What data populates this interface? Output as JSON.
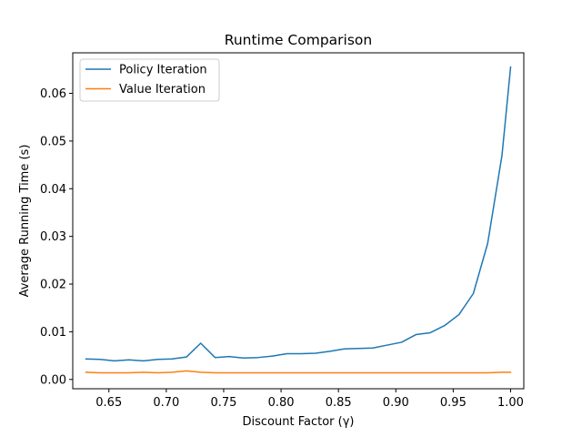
{
  "chart_data": {
    "type": "line",
    "title": "Runtime Comparison",
    "xlabel": "Discount Factor (γ)",
    "ylabel": "Average Running Time (s)",
    "xlim": [
      0.6185,
      1.0115
    ],
    "ylim": [
      -0.00195,
      0.0685
    ],
    "xticks": [
      "0.65",
      "0.70",
      "0.75",
      "0.80",
      "0.85",
      "0.90",
      "0.95",
      "1.00"
    ],
    "xtick_values": [
      0.65,
      0.7,
      0.75,
      0.8,
      0.85,
      0.9,
      0.95,
      1.0
    ],
    "yticks": [
      "0.00",
      "0.01",
      "0.02",
      "0.03",
      "0.04",
      "0.05",
      "0.06"
    ],
    "ytick_values": [
      0.0,
      0.01,
      0.02,
      0.03,
      0.04,
      0.05,
      0.06
    ],
    "grid": false,
    "legend_position": "top-left",
    "x": [
      0.63,
      0.6425,
      0.655,
      0.6675,
      0.68,
      0.6925,
      0.705,
      0.7175,
      0.73,
      0.7425,
      0.755,
      0.7675,
      0.78,
      0.7925,
      0.805,
      0.8175,
      0.83,
      0.8425,
      0.855,
      0.8675,
      0.88,
      0.8925,
      0.905,
      0.9175,
      0.93,
      0.9425,
      0.955,
      0.9675,
      0.98,
      0.9925,
      1.0
    ],
    "series": [
      {
        "name": "Policy Iteration",
        "color": "#1f77b4",
        "values": [
          0.0043,
          0.0042,
          0.0039,
          0.0041,
          0.0039,
          0.0042,
          0.0043,
          0.0047,
          0.0076,
          0.0046,
          0.0048,
          0.0045,
          0.0046,
          0.0049,
          0.0054,
          0.0054,
          0.0055,
          0.0059,
          0.0064,
          0.0065,
          0.0066,
          0.0072,
          0.0078,
          0.0094,
          0.0098,
          0.0113,
          0.0136,
          0.018,
          0.0285,
          0.047,
          0.0655
        ]
      },
      {
        "name": "Value Iteration",
        "color": "#ff7f0e",
        "values": [
          0.0015,
          0.0014,
          0.0014,
          0.0014,
          0.0015,
          0.0014,
          0.0015,
          0.0018,
          0.0015,
          0.0014,
          0.0014,
          0.0014,
          0.0014,
          0.0014,
          0.0014,
          0.0014,
          0.0014,
          0.0014,
          0.0014,
          0.0014,
          0.0014,
          0.0014,
          0.0014,
          0.0014,
          0.0014,
          0.0014,
          0.0014,
          0.0014,
          0.0014,
          0.0015,
          0.0015
        ]
      }
    ]
  }
}
